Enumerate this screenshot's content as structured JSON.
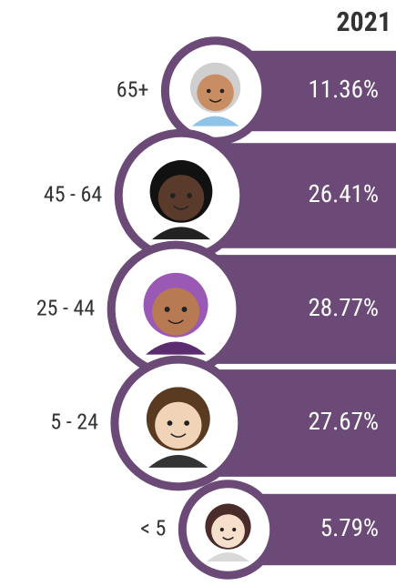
{
  "chart_data": {
    "type": "bar",
    "orientation": "horizontal",
    "title": "2021",
    "categories": [
      "65+",
      "45 - 64",
      "25 - 44",
      "5 - 24",
      "< 5"
    ],
    "values": [
      11.36,
      26.41,
      28.77,
      27.67,
      5.79
    ],
    "value_labels": [
      "11.36%",
      "26.41%",
      "28.77%",
      "27.67%",
      "5.79%"
    ],
    "color": "#6b4a78"
  }
}
